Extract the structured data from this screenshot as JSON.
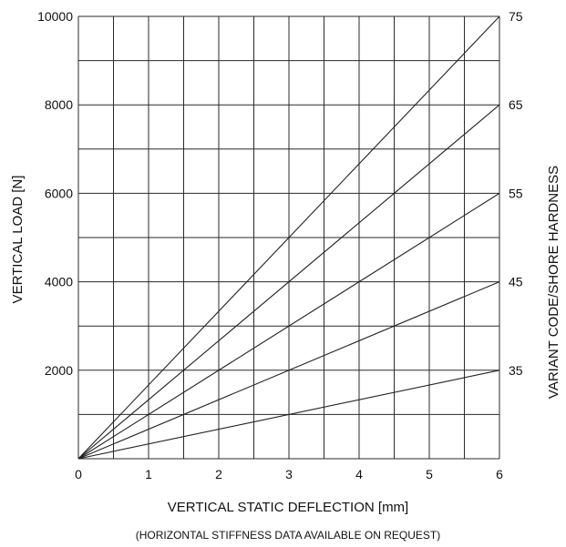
{
  "chart_data": {
    "type": "line",
    "xlabel": "VERTICAL STATIC DEFLECTION [mm]",
    "xnote": "(HORIZONTAL STIFFNESS DATA AVAILABLE ON REQUEST)",
    "ylabel": "VERTICAL LOAD [N]",
    "y2label": "VARIANT CODE/SHORE HARDNESS",
    "xlim": [
      0,
      6
    ],
    "ylim": [
      0,
      10000
    ],
    "xticks": [
      "0",
      "1",
      "2",
      "3",
      "4",
      "5",
      "6"
    ],
    "yticks": [
      "2000",
      "4000",
      "6000",
      "8000",
      "10000"
    ],
    "grid": true,
    "line_color": "#222222",
    "series": [
      {
        "name": "35",
        "x": [
          0,
          6
        ],
        "y": [
          0,
          2000
        ]
      },
      {
        "name": "45",
        "x": [
          0,
          6
        ],
        "y": [
          0,
          4000
        ]
      },
      {
        "name": "55",
        "x": [
          0,
          6
        ],
        "y": [
          0,
          6000
        ]
      },
      {
        "name": "65",
        "x": [
          0,
          6
        ],
        "y": [
          0,
          8000
        ]
      },
      {
        "name": "75",
        "x": [
          0,
          6
        ],
        "y": [
          0,
          10000
        ]
      }
    ]
  }
}
